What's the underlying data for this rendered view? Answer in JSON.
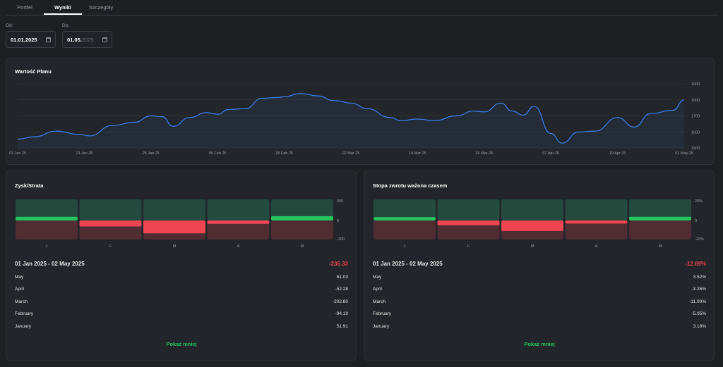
{
  "tabs": [
    {
      "label": "Portfel",
      "active": false
    },
    {
      "label": "Wyniki",
      "active": true
    },
    {
      "label": "Szczegóły",
      "active": false
    }
  ],
  "dates": {
    "from_label": "Od:",
    "from_value": "01.01.2025",
    "to_label": "Do:",
    "to_value_day": "01.05.",
    "to_value_year": "2025"
  },
  "line_chart": {
    "title": "Wartość Planu",
    "line_color": "#3b82f6"
  },
  "pl_card": {
    "title": "Zysk/Strata",
    "period": "01 Jan 2025 - 02 May 2025",
    "total": "-236.33",
    "rows": [
      {
        "month": "May",
        "value": "61.03"
      },
      {
        "month": "April",
        "value": "-52.28"
      },
      {
        "month": "March",
        "value": "-202.80"
      },
      {
        "month": "February",
        "value": "-94.19"
      },
      {
        "month": "January",
        "value": "51.91"
      }
    ],
    "show_less": "Pokaż mniej"
  },
  "twr_card": {
    "title": "Stopa zwrotu ważona czasem",
    "period": "01 Jan 2025 - 02 May 2025",
    "total": "-12.69%",
    "rows": [
      {
        "month": "May",
        "value": "3.52%"
      },
      {
        "month": "April",
        "value": "-3.26%"
      },
      {
        "month": "March",
        "value": "-11.00%"
      },
      {
        "month": "February",
        "value": "-5.05%"
      },
      {
        "month": "January",
        "value": "3.18%"
      }
    ],
    "show_less": "Pokaż mniej"
  },
  "chart_data": [
    {
      "type": "line",
      "title": "Wartość Planu",
      "x": [
        "2025-01-01",
        "2025-01-04",
        "2025-01-08",
        "2025-01-12",
        "2025-01-14",
        "2025-01-18",
        "2025-01-22",
        "2025-01-25",
        "2025-01-27",
        "2025-01-29",
        "2025-02-01",
        "2025-02-04",
        "2025-02-06",
        "2025-02-08",
        "2025-02-11",
        "2025-02-14",
        "2025-02-17",
        "2025-02-18",
        "2025-02-21",
        "2025-02-24",
        "2025-02-27",
        "2025-03-02",
        "2025-03-05",
        "2025-03-09",
        "2025-03-11",
        "2025-03-14",
        "2025-03-17",
        "2025-03-21",
        "2025-03-24",
        "2025-03-26",
        "2025-03-29",
        "2025-03-31",
        "2025-04-02",
        "2025-04-04",
        "2025-04-07",
        "2025-04-09",
        "2025-04-12",
        "2025-04-15",
        "2025-04-19",
        "2025-04-22",
        "2025-04-25",
        "2025-04-29",
        "2025-05-01"
      ],
      "series": [
        {
          "values": [
            1555,
            1570,
            1605,
            1585,
            1575,
            1640,
            1660,
            1700,
            1695,
            1635,
            1690,
            1720,
            1710,
            1740,
            1745,
            1810,
            1815,
            1820,
            1840,
            1825,
            1795,
            1780,
            1745,
            1690,
            1670,
            1680,
            1670,
            1700,
            1730,
            1725,
            1780,
            1730,
            1705,
            1760,
            1590,
            1530,
            1600,
            1605,
            1690,
            1630,
            1715,
            1735,
            1800
          ]
        }
      ],
      "x_ticks": [
        "01 Jan 25",
        "13 Jan 25",
        "25 Jan 25",
        "06 Feb 25",
        "18 Feb 25",
        "02 Mar 25",
        "14 Mar 25",
        "26 Mar 25",
        "07 Apr 25",
        "19 Apr 25",
        "01 May 25"
      ],
      "y_ticks": [
        1500,
        1600,
        1700,
        1800,
        1900
      ],
      "ylim": [
        1500,
        1900
      ],
      "grid": true
    },
    {
      "type": "bar",
      "title": "Zysk/Strata",
      "categories": [
        "J",
        "F",
        "M",
        "A",
        "M"
      ],
      "values": [
        51.91,
        -94.19,
        -202.8,
        -52.28,
        61.03
      ],
      "y_ticks": [
        "300",
        "0",
        "-300"
      ],
      "ylim": [
        -300,
        300
      ]
    },
    {
      "type": "bar",
      "title": "Stopa zwrotu ważona czasem",
      "categories": [
        "J",
        "F",
        "M",
        "A",
        "M"
      ],
      "values": [
        3.18,
        -5.05,
        -11.0,
        -3.26,
        3.52
      ],
      "y_ticks": [
        "20%",
        "0",
        "-20%"
      ],
      "ylim": [
        -20,
        20
      ]
    }
  ],
  "colors": {
    "positive": "#22c55e",
    "negative": "#ef4452",
    "bar_bg_top": "#234a3c",
    "bar_bg_bottom": "#502c33"
  }
}
